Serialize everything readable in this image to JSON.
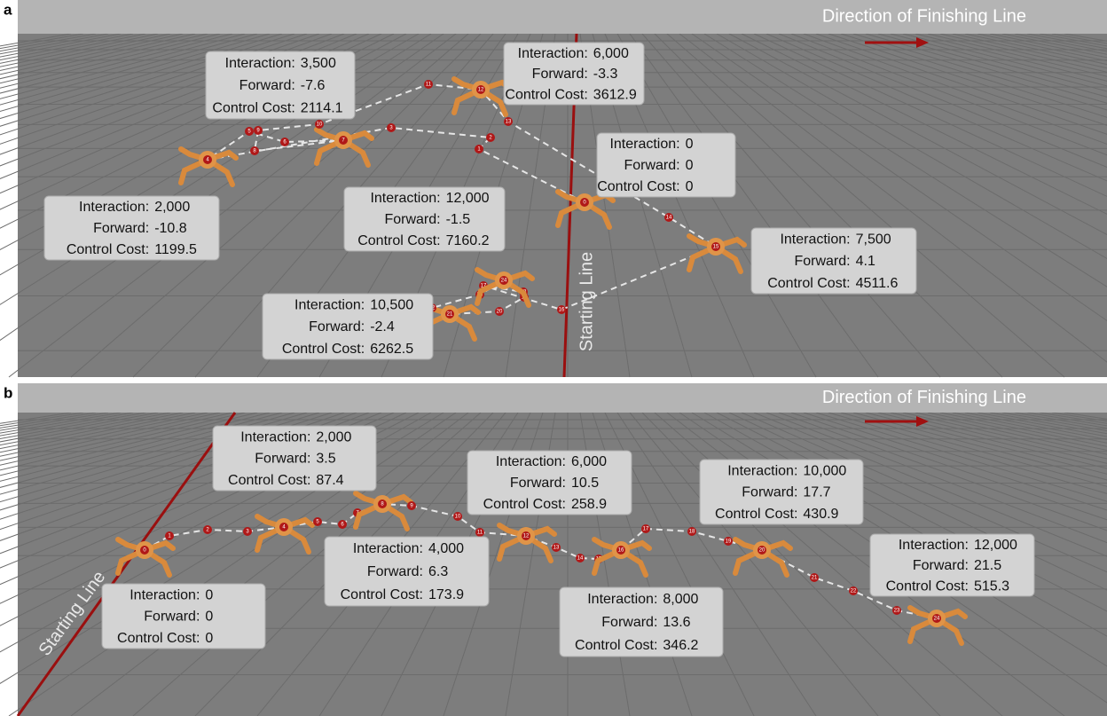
{
  "panels": [
    {
      "letter": "a",
      "direction": "Direction of Finishing Line",
      "start_line": "Starting Line",
      "boxes": [
        {
          "rows": [
            [
              "Interaction:",
              "3,500"
            ],
            [
              "Forward:",
              "-7.6"
            ],
            [
              "Control Cost:",
              "2114.1"
            ]
          ]
        },
        {
          "rows": [
            [
              "Interaction:",
              "6,000"
            ],
            [
              "Forward:",
              "-3.3"
            ],
            [
              "Control Cost:",
              "3612.9"
            ]
          ]
        },
        {
          "rows": [
            [
              "Interaction:",
              "0"
            ],
            [
              "Forward:",
              "0"
            ],
            [
              "Control Cost:",
              "0"
            ]
          ]
        },
        {
          "rows": [
            [
              "Interaction:",
              "2,000"
            ],
            [
              "Forward:",
              "-10.8"
            ],
            [
              "Control Cost:",
              "1199.5"
            ]
          ]
        },
        {
          "rows": [
            [
              "Interaction:",
              "12,000"
            ],
            [
              "Forward:",
              "-1.5"
            ],
            [
              "Control Cost:",
              "7160.2"
            ]
          ]
        },
        {
          "rows": [
            [
              "Interaction:",
              "7,500"
            ],
            [
              "Forward:",
              "4.1"
            ],
            [
              "Control Cost:",
              "4511.6"
            ]
          ]
        },
        {
          "rows": [
            [
              "Interaction:",
              "10,500"
            ],
            [
              "Forward:",
              "-2.4"
            ],
            [
              "Control Cost:",
              "6262.5"
            ]
          ]
        }
      ],
      "waypoints": [
        "0",
        "1",
        "2",
        "3",
        "4",
        "5",
        "6",
        "7",
        "8",
        "9",
        "10",
        "11",
        "12",
        "13",
        "14",
        "15",
        "16",
        "17",
        "18",
        "19",
        "20",
        "21",
        "22",
        "23",
        "24"
      ]
    },
    {
      "letter": "b",
      "direction": "Direction of Finishing Line",
      "start_line": "Starting Line",
      "boxes": [
        {
          "rows": [
            [
              "Interaction:",
              "2,000"
            ],
            [
              "Forward:",
              "3.5"
            ],
            [
              "Control Cost:",
              "87.4"
            ]
          ]
        },
        {
          "rows": [
            [
              "Interaction:",
              "6,000"
            ],
            [
              "Forward:",
              "10.5"
            ],
            [
              "Control Cost:",
              "258.9"
            ]
          ]
        },
        {
          "rows": [
            [
              "Interaction:",
              "10,000"
            ],
            [
              "Forward:",
              "17.7"
            ],
            [
              "Control Cost:",
              "430.9"
            ]
          ]
        },
        {
          "rows": [
            [
              "Interaction:",
              "0"
            ],
            [
              "Forward:",
              "0"
            ],
            [
              "Control Cost:",
              "0"
            ]
          ]
        },
        {
          "rows": [
            [
              "Interaction:",
              "4,000"
            ],
            [
              "Forward:",
              "6.3"
            ],
            [
              "Control Cost:",
              "173.9"
            ]
          ]
        },
        {
          "rows": [
            [
              "Interaction:",
              "8,000"
            ],
            [
              "Forward:",
              "13.6"
            ],
            [
              "Control Cost:",
              "346.2"
            ]
          ]
        },
        {
          "rows": [
            [
              "Interaction:",
              "12,000"
            ],
            [
              "Forward:",
              "21.5"
            ],
            [
              "Control Cost:",
              "515.3"
            ]
          ]
        }
      ],
      "waypoints": [
        "0",
        "1",
        "2",
        "3",
        "4",
        "5",
        "6",
        "7",
        "8",
        "9",
        "10",
        "11",
        "12",
        "13",
        "14",
        "15",
        "16",
        "17",
        "18",
        "19",
        "20",
        "21",
        "22",
        "23",
        "24"
      ]
    }
  ]
}
